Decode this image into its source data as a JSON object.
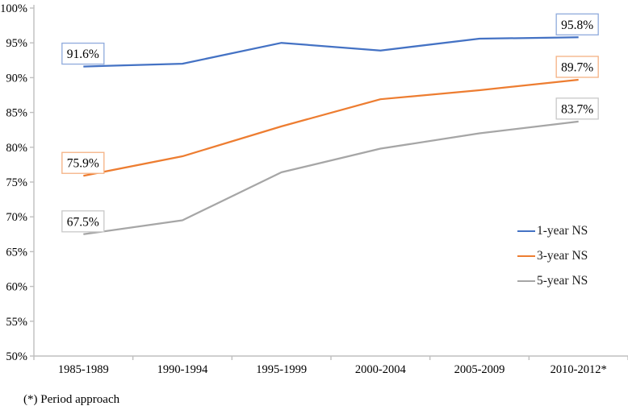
{
  "footnote": "(*) Period approach",
  "colors": {
    "axis": "#BFBFBF",
    "background": "#FFFFFF",
    "label_text": "#000000"
  },
  "chart_data": {
    "type": "line",
    "title": "",
    "xlabel": "",
    "ylabel": "",
    "grid": false,
    "categories": [
      "1985-1989",
      "1990-1994",
      "1995-1999",
      "2000-2004",
      "2005-2009",
      "2010-2012*"
    ],
    "y_axis": {
      "min": 50,
      "max": 100,
      "step": 5,
      "tick_labels": [
        "50%",
        "55%",
        "60%",
        "65%",
        "70%",
        "75%",
        "80%",
        "85%",
        "90%",
        "95%",
        "100%"
      ]
    },
    "legend": {
      "position": "right",
      "entries": [
        "1-year NS",
        "3-year NS",
        "5-year NS"
      ]
    },
    "series": [
      {
        "name": "1-year NS",
        "color": "#4472C4",
        "box_border": "#8FAADC",
        "values": [
          91.6,
          92.0,
          95.0,
          93.9,
          95.6,
          95.8
        ],
        "start_label": "91.6%",
        "end_label": "95.8%"
      },
      {
        "name": "3-year NS",
        "color": "#ED7D31",
        "box_border": "#F4B183",
        "values": [
          75.9,
          78.7,
          83.0,
          86.9,
          88.2,
          89.7
        ],
        "start_label": "75.9%",
        "end_label": "89.7%"
      },
      {
        "name": "5-year NS",
        "color": "#A6A6A6",
        "box_border": "#C9C9C9",
        "values": [
          67.5,
          69.5,
          76.4,
          79.8,
          82.0,
          83.7
        ],
        "start_label": "67.5%",
        "end_label": "83.7%"
      }
    ]
  }
}
